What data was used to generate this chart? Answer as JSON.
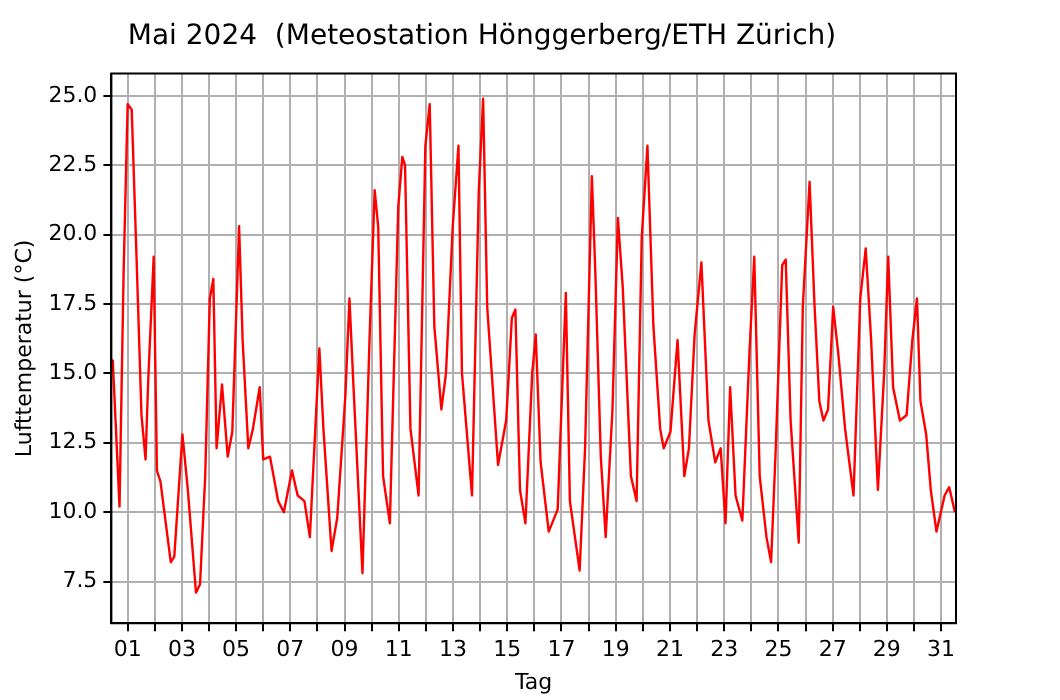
{
  "chart_data": {
    "type": "line",
    "title": "Mai 2024  (Meteostation Hönggerberg/ETH Zürich)",
    "xlabel": "Tag",
    "ylabel": "Lufttemperatur (°C)",
    "xlim": [
      0.4,
      31.55
    ],
    "ylim": [
      6,
      25.8
    ],
    "xticks": [
      {
        "value": 1,
        "label": "01"
      },
      {
        "value": 2,
        "label": null
      },
      {
        "value": 3,
        "label": "03"
      },
      {
        "value": 4,
        "label": null
      },
      {
        "value": 5,
        "label": "05"
      },
      {
        "value": 6,
        "label": null
      },
      {
        "value": 7,
        "label": "07"
      },
      {
        "value": 8,
        "label": null
      },
      {
        "value": 9,
        "label": "09"
      },
      {
        "value": 10,
        "label": null
      },
      {
        "value": 11,
        "label": "11"
      },
      {
        "value": 12,
        "label": null
      },
      {
        "value": 13,
        "label": "13"
      },
      {
        "value": 14,
        "label": null
      },
      {
        "value": 15,
        "label": "15"
      },
      {
        "value": 16,
        "label": null
      },
      {
        "value": 17,
        "label": "17"
      },
      {
        "value": 18,
        "label": null
      },
      {
        "value": 19,
        "label": "19"
      },
      {
        "value": 20,
        "label": null
      },
      {
        "value": 21,
        "label": "21"
      },
      {
        "value": 22,
        "label": null
      },
      {
        "value": 23,
        "label": "23"
      },
      {
        "value": 24,
        "label": null
      },
      {
        "value": 25,
        "label": "25"
      },
      {
        "value": 26,
        "label": null
      },
      {
        "value": 27,
        "label": "27"
      },
      {
        "value": 28,
        "label": null
      },
      {
        "value": 29,
        "label": "29"
      },
      {
        "value": 30,
        "label": null
      },
      {
        "value": 31,
        "label": "31"
      }
    ],
    "yticks": [
      7.5,
      {
        "value": 10,
        "label": "10.0"
      },
      12.5,
      {
        "value": 15,
        "label": "15.0"
      },
      17.5,
      {
        "value": 20,
        "label": "20.0"
      },
      22.5,
      {
        "value": 25,
        "label": "25.0"
      }
    ],
    "grid": true,
    "marker": "none",
    "line_style": "solid",
    "x": [
      0.45,
      0.7,
      0.85,
      1.0,
      1.15,
      1.33,
      1.51,
      1.66,
      1.76,
      1.96,
      2.08,
      2.21,
      2.59,
      2.72,
      3.02,
      3.22,
      3.52,
      3.67,
      3.86,
      4.03,
      4.16,
      4.28,
      4.48,
      4.69,
      4.86,
      5.11,
      5.24,
      5.45,
      5.62,
      5.87,
      6.0,
      6.25,
      6.55,
      6.76,
      7.06,
      7.27,
      7.52,
      7.72,
      8.07,
      8.22,
      8.52,
      8.73,
      9.03,
      9.18,
      9.33,
      9.66,
      9.92,
      10.11,
      10.24,
      10.42,
      10.67,
      10.98,
      11.13,
      11.23,
      11.43,
      11.73,
      11.98,
      12.14,
      12.31,
      12.57,
      12.74,
      12.99,
      13.2,
      13.33,
      13.7,
      13.95,
      14.11,
      14.26,
      14.66,
      14.96,
      15.17,
      15.3,
      15.47,
      15.67,
      15.92,
      16.05,
      16.23,
      16.53,
      16.86,
      17.16,
      17.31,
      17.67,
      17.87,
      18.12,
      18.25,
      18.45,
      18.63,
      18.88,
      19.08,
      19.26,
      19.56,
      19.77,
      19.96,
      20.17,
      20.39,
      20.64,
      20.77,
      21.02,
      21.28,
      21.53,
      21.7,
      21.91,
      22.16,
      22.42,
      22.67,
      22.87,
      23.05,
      23.22,
      23.42,
      23.67,
      23.93,
      24.11,
      24.31,
      24.56,
      24.73,
      24.89,
      25.14,
      25.27,
      25.45,
      25.75,
      25.9,
      26.05,
      26.15,
      26.33,
      26.51,
      26.66,
      26.83,
      27.02,
      27.21,
      27.46,
      27.77,
      28.02,
      28.22,
      28.42,
      28.67,
      28.9,
      29.05,
      29.23,
      29.48,
      29.73,
      29.94,
      30.11,
      30.24,
      30.45,
      30.62,
      30.83,
      31.13,
      31.3,
      31.51
    ],
    "series": [
      {
        "color": "#ff0000",
        "values": [
          15.5,
          10.2,
          18.6,
          24.7,
          24.5,
          19.1,
          13.5,
          11.9,
          14.8,
          19.2,
          11.5,
          11.1,
          8.2,
          8.4,
          12.8,
          10.8,
          7.1,
          7.4,
          11.3,
          17.7,
          18.4,
          12.3,
          14.6,
          12.0,
          12.9,
          20.3,
          16.2,
          12.3,
          13.0,
          14.5,
          11.9,
          12.0,
          10.4,
          10.0,
          11.5,
          10.6,
          10.4,
          9.1,
          15.9,
          13.0,
          8.6,
          9.8,
          14.2,
          17.7,
          14.5,
          7.8,
          16.2,
          21.6,
          20.3,
          11.3,
          9.6,
          21.0,
          22.8,
          22.5,
          13.0,
          10.6,
          23.2,
          24.7,
          16.7,
          13.7,
          15.0,
          20.3,
          23.2,
          15.0,
          10.6,
          21.6,
          24.9,
          17.4,
          11.7,
          13.3,
          17.0,
          17.3,
          10.8,
          9.6,
          15.0,
          16.4,
          11.8,
          9.3,
          10.1,
          17.9,
          10.4,
          7.9,
          12.3,
          22.1,
          18.6,
          12.0,
          9.1,
          13.7,
          20.6,
          18.1,
          11.3,
          10.4,
          19.9,
          23.2,
          16.7,
          13.0,
          12.3,
          12.9,
          16.2,
          11.3,
          12.3,
          16.4,
          19.0,
          13.3,
          11.8,
          12.3,
          9.6,
          14.5,
          10.6,
          9.7,
          15.7,
          19.2,
          11.3,
          9.1,
          8.2,
          12.0,
          18.9,
          19.1,
          13.3,
          8.9,
          17.4,
          20.1,
          21.9,
          17.5,
          14.0,
          13.3,
          13.7,
          17.4,
          15.7,
          13.0,
          10.6,
          17.7,
          19.5,
          16.2,
          10.8,
          15.0,
          19.2,
          14.5,
          13.3,
          13.5,
          16.2,
          17.7,
          14.0,
          12.8,
          10.8,
          9.3,
          10.6,
          10.9,
          10.0
        ]
      }
    ]
  }
}
